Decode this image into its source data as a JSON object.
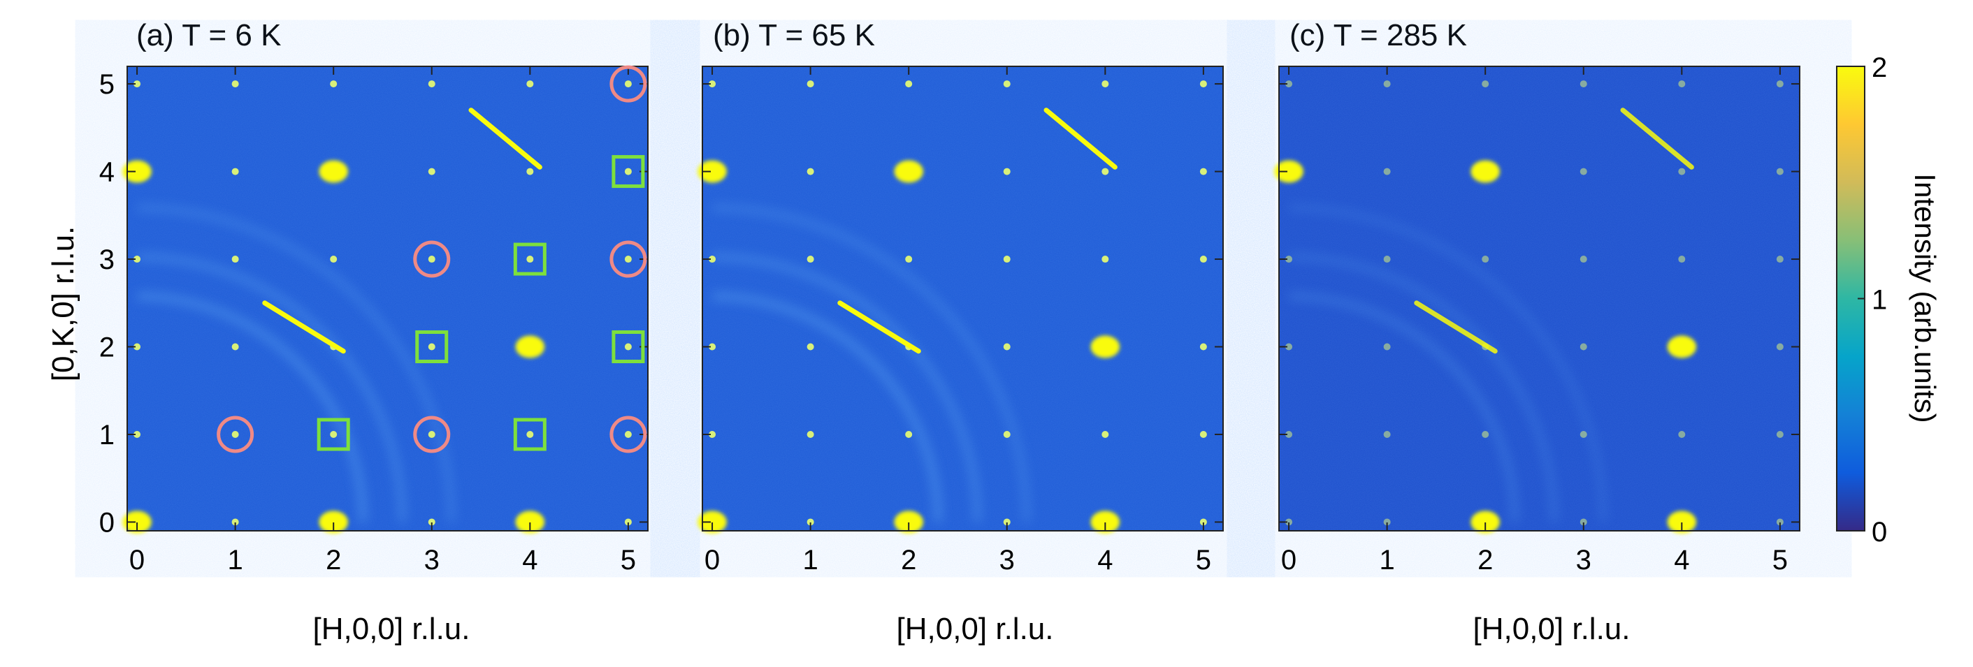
{
  "chart_data": {
    "type": "heatmap",
    "colormap": "parula",
    "panels": [
      {
        "title": "(a) T = 6 K",
        "xlabel": "[H,0,0] r.l.u.",
        "ylabel": "[0,K,0] r.l.u.",
        "xlim": [
          -0.1,
          5.2
        ],
        "ylim": [
          -0.1,
          5.2
        ],
        "xticks": [
          0,
          1,
          2,
          3,
          4,
          5
        ],
        "yticks": [
          0,
          1,
          2,
          3,
          4,
          5
        ],
        "background": "#1e5bd6",
        "circle_markers": [
          [
            1,
            1
          ],
          [
            3,
            1
          ],
          [
            5,
            1
          ],
          [
            3,
            3
          ],
          [
            5,
            3
          ],
          [
            5,
            5
          ]
        ],
        "square_markers": [
          [
            2,
            1
          ],
          [
            4,
            1
          ],
          [
            3,
            2
          ],
          [
            5,
            2
          ],
          [
            4,
            3
          ],
          [
            5,
            4
          ]
        ],
        "circle_color": "#ef8a86",
        "square_color": "#7ee03c"
      },
      {
        "title": "(b) T = 65 K",
        "xlabel": "[H,0,0] r.l.u.",
        "ylabel": "",
        "xlim": [
          -0.1,
          5.2
        ],
        "ylim": [
          -0.1,
          5.2
        ],
        "xticks": [
          0,
          1,
          2,
          3,
          4,
          5
        ],
        "yticks": [
          0,
          1,
          2,
          3,
          4,
          5
        ],
        "background": "#1e5bd6",
        "circle_markers": [],
        "square_markers": []
      },
      {
        "title": "(c) T = 285 K",
        "xlabel": "[H,0,0] r.l.u.",
        "ylabel": "",
        "xlim": [
          -0.1,
          5.2
        ],
        "ylim": [
          -0.1,
          5.2
        ],
        "xticks": [
          0,
          1,
          2,
          3,
          4,
          5
        ],
        "yticks": [
          0,
          1,
          2,
          3,
          4,
          5
        ],
        "background": "#1d4fcc",
        "circle_markers": [],
        "square_markers": []
      }
    ],
    "colorbar": {
      "label": "Intensity (arb.units)",
      "range": [
        0,
        2
      ],
      "ticks": [
        0,
        1,
        2
      ],
      "colors": [
        "#352a87",
        "#0f5cdd",
        "#1481d6",
        "#06a4ca",
        "#2eb7a4",
        "#87bf77",
        "#d1bb59",
        "#fec832",
        "#f9fb0e"
      ]
    }
  }
}
